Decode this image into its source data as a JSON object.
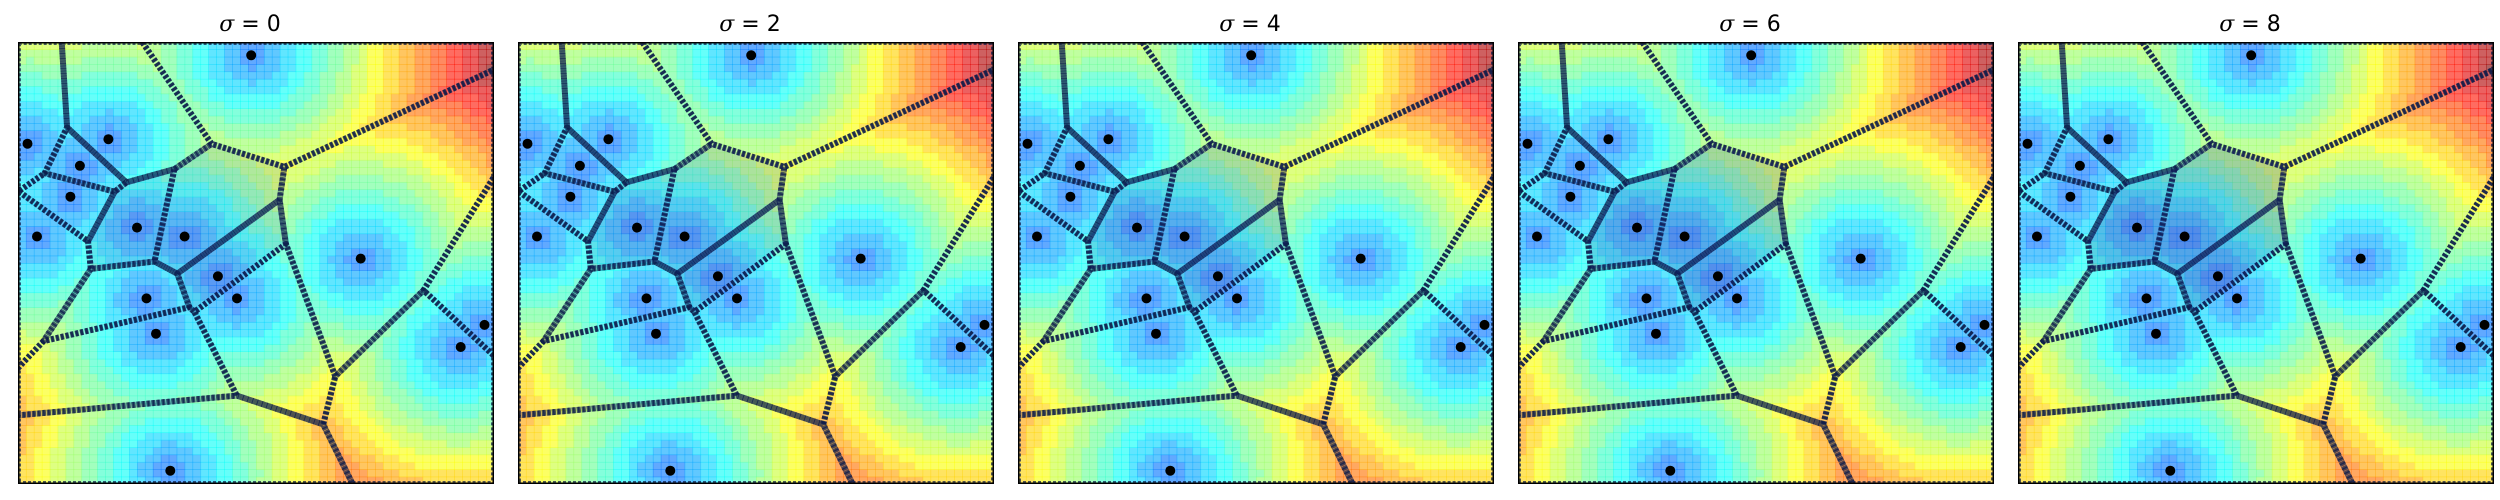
{
  "chart_data": [
    {
      "type": "scatter",
      "title": {
        "symbol": "σ",
        "eq": " = ",
        "value": "0"
      },
      "sigma": 0
    },
    {
      "type": "scatter",
      "title": {
        "symbol": "σ",
        "eq": " = ",
        "value": "2"
      },
      "sigma": 2
    },
    {
      "type": "scatter",
      "title": {
        "symbol": "σ",
        "eq": " = ",
        "value": "4"
      },
      "sigma": 4
    },
    {
      "type": "scatter",
      "title": {
        "symbol": "σ",
        "eq": " = ",
        "value": "6"
      },
      "sigma": 6
    },
    {
      "type": "scatter",
      "title": {
        "symbol": "σ",
        "eq": " = ",
        "value": "8"
      },
      "sigma": 8
    }
  ],
  "points": [
    [
      0.49,
      0.97
    ],
    [
      0.02,
      0.77
    ],
    [
      0.13,
      0.72
    ],
    [
      0.19,
      0.78
    ],
    [
      0.11,
      0.65
    ],
    [
      0.04,
      0.56
    ],
    [
      0.25,
      0.58
    ],
    [
      0.35,
      0.56
    ],
    [
      0.72,
      0.51
    ],
    [
      0.42,
      0.47
    ],
    [
      0.27,
      0.42
    ],
    [
      0.46,
      0.42
    ],
    [
      0.29,
      0.34
    ],
    [
      0.98,
      0.36
    ],
    [
      0.93,
      0.31
    ],
    [
      0.32,
      0.03
    ]
  ],
  "axes": {
    "xlim": [
      0,
      1
    ],
    "ylim": [
      0,
      1
    ],
    "ticks": "none"
  },
  "colormap": "jet",
  "marker_color": "#000000"
}
